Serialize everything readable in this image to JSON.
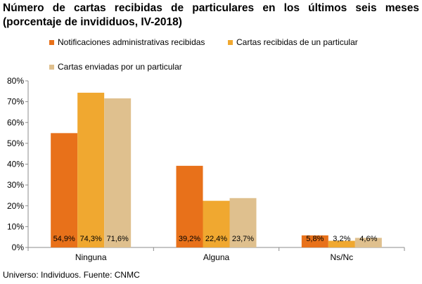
{
  "title_line1": "Número de cartas recibidas de particulares en los últimos seis meses",
  "title_line2": "(porcentaje de invididuos, IV-2018)",
  "footnote": "Universo: Individuos. Fuente: CNMC",
  "chart_data": {
    "type": "bar",
    "title": "Número de cartas recibidas de particulares en los últimos seis meses (porcentaje de invididuos, IV-2018)",
    "xlabel": "",
    "ylabel": "",
    "categories": [
      "Ninguna",
      "Alguna",
      "Ns/Nc"
    ],
    "ylim": [
      0,
      80
    ],
    "yticks": [
      0,
      10,
      20,
      30,
      40,
      50,
      60,
      70,
      80
    ],
    "ytick_labels": [
      "0%",
      "10%",
      "20%",
      "30%",
      "40%",
      "50%",
      "60%",
      "70%",
      "80%"
    ],
    "grid": false,
    "legend_position": "top",
    "series": [
      {
        "name": "Notificaciones administrativas recibidas",
        "color": "#e8711a",
        "values": [
          54.9,
          39.2,
          5.8
        ],
        "labels": [
          "54,9%",
          "39,2%",
          "5,8%"
        ]
      },
      {
        "name": "Cartas recibidas de un particular",
        "color": "#f0a830",
        "values": [
          74.3,
          22.4,
          3.2
        ],
        "labels": [
          "74,3%",
          "22,4%",
          "3,2%"
        ]
      },
      {
        "name": "Cartas enviadas por un particular",
        "color": "#dfc08e",
        "values": [
          71.6,
          23.7,
          4.6
        ],
        "labels": [
          "71,6%",
          "23,7%",
          "4,6%"
        ]
      }
    ]
  }
}
